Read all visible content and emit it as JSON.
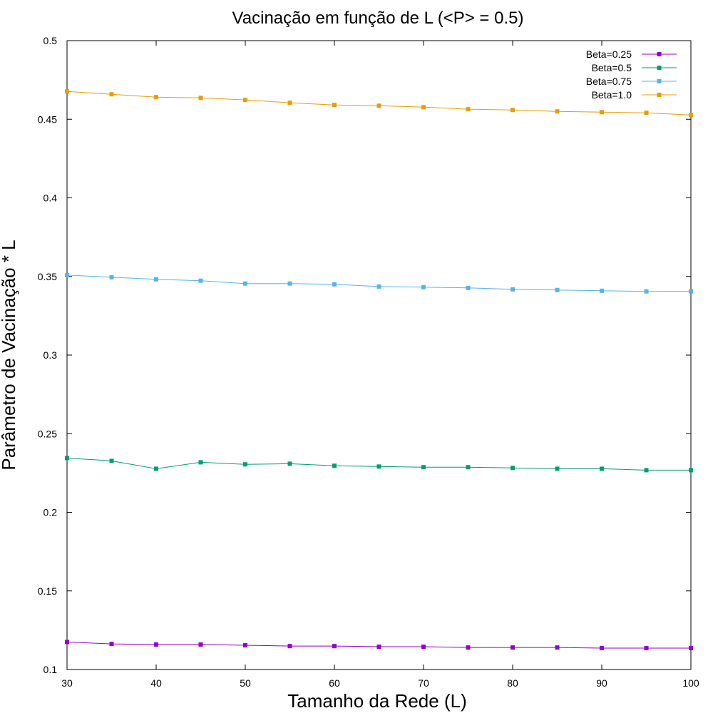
{
  "chart_data": {
    "type": "line",
    "title": "Vacinação em função de L (<P> = 0.5)",
    "xlabel": "Tamanho da Rede (L)",
    "ylabel": "Parâmetro de Vacinação * L",
    "xlim": [
      30,
      100
    ],
    "ylim": [
      0.1,
      0.5
    ],
    "x_ticks": [
      30,
      40,
      50,
      60,
      70,
      80,
      90,
      100
    ],
    "y_ticks": [
      0.1,
      0.15,
      0.2,
      0.25,
      0.3,
      0.35,
      0.4,
      0.45,
      0.5
    ],
    "x_tick_labels": [
      "30",
      "40",
      "50",
      "60",
      "70",
      "80",
      "90",
      "100"
    ],
    "y_tick_labels": [
      "0.1",
      "0.15",
      "0.2",
      "0.25",
      "0.3",
      "0.35",
      "0.4",
      "0.45",
      "0.5"
    ],
    "grid": false,
    "legend_position": "top-right",
    "x": [
      30,
      35,
      40,
      45,
      50,
      55,
      60,
      65,
      70,
      75,
      80,
      85,
      90,
      95,
      100
    ],
    "series": [
      {
        "name": "Beta=0.25",
        "color": "#9400d3",
        "values": [
          0.1175,
          0.1163,
          0.1159,
          0.1159,
          0.1154,
          0.1149,
          0.1149,
          0.1145,
          0.1145,
          0.114,
          0.114,
          0.114,
          0.1136,
          0.1136,
          0.1136
        ]
      },
      {
        "name": "Beta=0.5",
        "color": "#009e73",
        "values": [
          0.2345,
          0.2327,
          0.2277,
          0.2318,
          0.2305,
          0.2309,
          0.2296,
          0.2291,
          0.2287,
          0.2287,
          0.2282,
          0.2277,
          0.2277,
          0.2268,
          0.2268
        ]
      },
      {
        "name": "Beta=0.75",
        "color": "#56b4e9",
        "values": [
          0.3509,
          0.3495,
          0.3482,
          0.3473,
          0.3455,
          0.3455,
          0.345,
          0.3436,
          0.3432,
          0.3427,
          0.3418,
          0.3414,
          0.3409,
          0.3405,
          0.3405
        ]
      },
      {
        "name": "Beta=1.0",
        "color": "#e69f00",
        "values": [
          0.4677,
          0.4659,
          0.4641,
          0.4636,
          0.4623,
          0.4605,
          0.4591,
          0.4586,
          0.4577,
          0.4564,
          0.4559,
          0.455,
          0.4545,
          0.4541,
          0.4527
        ]
      }
    ]
  }
}
